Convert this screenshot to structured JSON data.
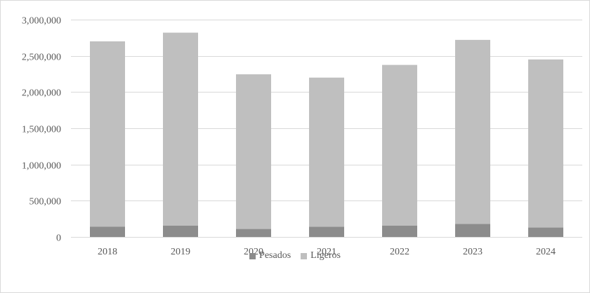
{
  "chart_data": {
    "type": "bar",
    "stacked": true,
    "categories": [
      "2018",
      "2019",
      "2020",
      "2021",
      "2022",
      "2023",
      "2024"
    ],
    "series": [
      {
        "name": "Pesados",
        "color": "#8c8c8c",
        "values": [
          140000,
          155000,
          110000,
          140000,
          155000,
          180000,
          130000
        ]
      },
      {
        "name": "Ligeros",
        "color": "#bfbfbf",
        "values": [
          2560000,
          2665000,
          2135000,
          2060000,
          2220000,
          2540000,
          2320000
        ]
      }
    ],
    "ylim": [
      0,
      3000000
    ],
    "yticks": [
      0,
      500000,
      1000000,
      1500000,
      2000000,
      2500000,
      3000000
    ],
    "ytick_labels": [
      "0",
      "500,000",
      "1,000,000",
      "1,500,000",
      "2,000,000",
      "2,500,000",
      "3,000,000"
    ],
    "grid": true,
    "legend_position": "bottom",
    "gridline_color": "#d9d9d9",
    "tick_label_color": "#595959"
  }
}
